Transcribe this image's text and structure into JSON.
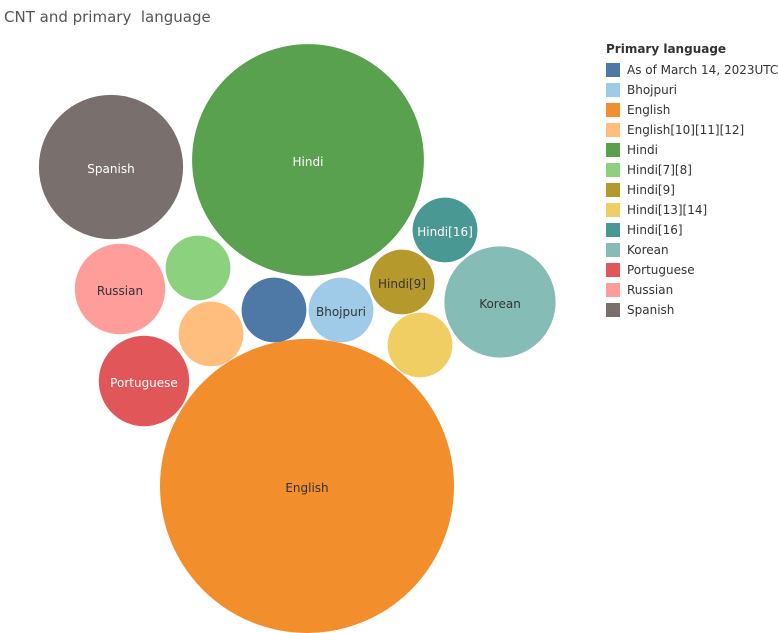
{
  "chart_data": {
    "type": "packed-bubble",
    "title": "CNT and primary  language",
    "legend": {
      "title": "Primary language",
      "placement": "right",
      "items": [
        {
          "label": "As of March 14, 2023UTC",
          "color": "#4e79a7"
        },
        {
          "label": "Bhojpuri",
          "color": "#a0cbe8"
        },
        {
          "label": "English",
          "color": "#f28e2b"
        },
        {
          "label": "English[10][11][12]",
          "color": "#ffbe7d"
        },
        {
          "label": "Hindi",
          "color": "#59a14f"
        },
        {
          "label": "Hindi[7][8]",
          "color": "#8cd17d"
        },
        {
          "label": "Hindi[9]",
          "color": "#b6992d"
        },
        {
          "label": "Hindi[13][14]",
          "color": "#f1ce63"
        },
        {
          "label": "Hindi[16]",
          "color": "#499894"
        },
        {
          "label": "Korean",
          "color": "#86bcb6"
        },
        {
          "label": "Portuguese",
          "color": "#e15759"
        },
        {
          "label": "Russian",
          "color": "#ff9d9a"
        },
        {
          "label": "Spanish",
          "color": "#79706e"
        }
      ]
    },
    "bubbles": [
      {
        "category": "English",
        "label": "English",
        "size": 37,
        "color": "#f28e2b",
        "text_color": "#333333"
      },
      {
        "category": "Hindi",
        "label": "Hindi",
        "size": 23,
        "color": "#59a14f",
        "text_color": "#ffffff"
      },
      {
        "category": "Korean",
        "label": "Korean",
        "size": 5.3,
        "color": "#86bcb6",
        "text_color": "#333333"
      },
      {
        "category": "Spanish",
        "label": "Spanish",
        "size": 8.9,
        "color": "#79706e",
        "text_color": "#ffffff"
      },
      {
        "category": "Russian",
        "label": "Russian",
        "size": 3.5,
        "color": "#ff9d9a",
        "text_color": "#333333"
      },
      {
        "category": "Portuguese",
        "label": "Portuguese",
        "size": 3.5,
        "color": "#e15759",
        "text_color": "#ffffff"
      },
      {
        "category": "Hindi[7][8]",
        "label": "",
        "size": 1.8,
        "color": "#8cd17d",
        "text_color": "#333333"
      },
      {
        "category": "English[10][11][12]",
        "label": "",
        "size": 1.8,
        "color": "#ffbe7d",
        "text_color": "#333333"
      },
      {
        "category": "As of March 14, 2023UTC",
        "label": "",
        "size": 1.8,
        "color": "#4e79a7",
        "text_color": "#ffffff"
      },
      {
        "category": "Bhojpuri",
        "label": "Bhojpuri",
        "size": 1.8,
        "color": "#a0cbe8",
        "text_color": "#333333"
      },
      {
        "category": "Hindi[9]",
        "label": "Hindi[9]",
        "size": 1.8,
        "color": "#b6992d",
        "text_color": "#333333"
      },
      {
        "category": "Hindi[13][14]",
        "label": "",
        "size": 1.8,
        "color": "#f1ce63",
        "text_color": "#333333"
      },
      {
        "category": "Hindi[16]",
        "label": "Hindi[16]",
        "size": 1.8,
        "color": "#499894",
        "text_color": "#ffffff"
      }
    ]
  }
}
